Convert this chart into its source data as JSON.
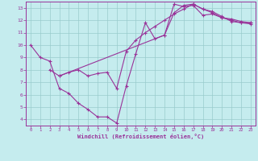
{
  "xlabel": "Windchill (Refroidissement éolien,°C)",
  "bg_color": "#c5ecee",
  "line_color": "#993399",
  "grid_color": "#99cccc",
  "axis_color": "#993399",
  "xlim": [
    -0.5,
    23.5
  ],
  "ylim": [
    3.5,
    13.5
  ],
  "xticks": [
    0,
    1,
    2,
    3,
    4,
    5,
    6,
    7,
    8,
    9,
    10,
    11,
    12,
    13,
    14,
    15,
    16,
    17,
    18,
    19,
    20,
    21,
    22,
    23
  ],
  "yticks": [
    4,
    5,
    6,
    7,
    8,
    9,
    10,
    11,
    12,
    13
  ],
  "line1_x": [
    0,
    1,
    2,
    3,
    4,
    5,
    6,
    7,
    8,
    9,
    10,
    11,
    12,
    13,
    14,
    15,
    16,
    17,
    18,
    19,
    20,
    21,
    22,
    23
  ],
  "line1_y": [
    10.0,
    9.0,
    8.7,
    6.5,
    6.1,
    5.3,
    4.8,
    4.2,
    4.2,
    3.7,
    6.7,
    9.3,
    11.8,
    10.5,
    10.8,
    13.3,
    13.1,
    13.2,
    12.4,
    12.5,
    12.2,
    12.1,
    11.9,
    11.8
  ],
  "line2_x": [
    2,
    3,
    4,
    5,
    6,
    7,
    8,
    9,
    10,
    11,
    12,
    13,
    14,
    15,
    16,
    17,
    18,
    19,
    20,
    21,
    22,
    23
  ],
  "line2_y": [
    8.0,
    7.5,
    7.8,
    8.0,
    7.5,
    7.7,
    7.8,
    6.5,
    9.5,
    10.4,
    11.0,
    11.5,
    12.0,
    12.5,
    12.9,
    13.3,
    12.9,
    12.7,
    12.3,
    11.9,
    11.8,
    11.8
  ],
  "line3_x": [
    3,
    14,
    15,
    16,
    17,
    18,
    19,
    20,
    21,
    22,
    23
  ],
  "line3_y": [
    7.5,
    10.8,
    12.6,
    13.2,
    13.3,
    12.9,
    12.6,
    12.2,
    12.0,
    11.8,
    11.7
  ]
}
